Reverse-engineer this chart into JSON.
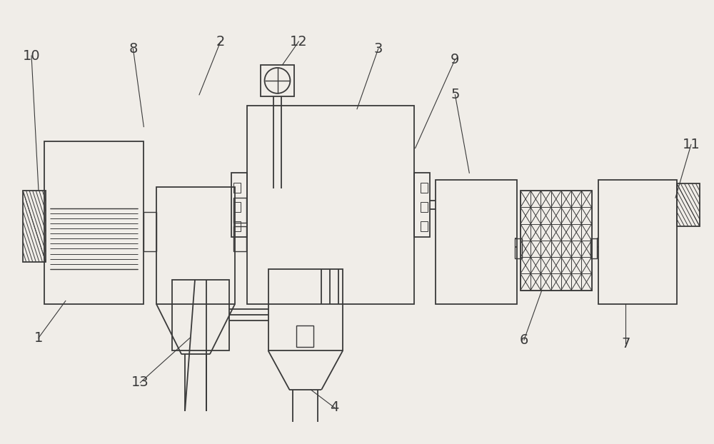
{
  "bg_color": "#f0ede8",
  "line_color": "#3a3a3a",
  "fig_width": 10.0,
  "fig_height": 6.22,
  "lw": 1.3,
  "lw_thin": 0.7,
  "lw_med": 1.0
}
